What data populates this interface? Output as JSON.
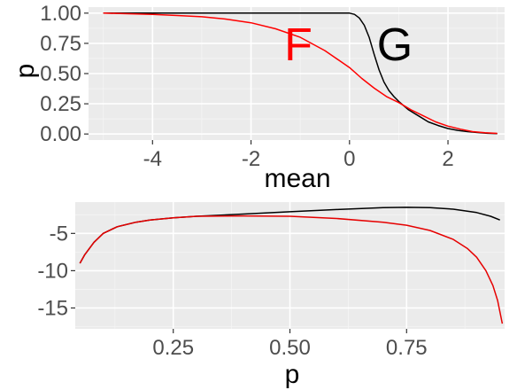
{
  "chart_data": [
    {
      "type": "line",
      "xlabel": "mean",
      "ylabel": "p",
      "xlim": [
        -5.3,
        3.15
      ],
      "ylim": [
        -0.05,
        1.05
      ],
      "x_ticks": [
        -4,
        -2,
        0,
        2
      ],
      "y_ticks": [
        0.0,
        0.25,
        0.5,
        0.75,
        1.0
      ],
      "x_tick_labels": [
        "-4",
        "-2",
        "0",
        "2"
      ],
      "y_tick_labels": [
        "0.00",
        "0.25",
        "0.50",
        "0.75",
        "1.00"
      ],
      "grid": true,
      "annotations": [
        {
          "text": "F",
          "x": -1.2,
          "y": 0.72,
          "color": "#ff0000"
        },
        {
          "text": "G",
          "x": 1.0,
          "y": 0.72,
          "color": "#000000"
        }
      ],
      "series": [
        {
          "color": "#000000",
          "x": [
            -5,
            -4,
            -3,
            -2,
            -1,
            0,
            0.1,
            0.2,
            0.3,
            0.4,
            0.5,
            0.6,
            0.7,
            0.8,
            0.9,
            1.0,
            1.2,
            1.4,
            1.6,
            1.8,
            2.0,
            2.2,
            2.4,
            2.6,
            2.8,
            3.0
          ],
          "y": [
            1.0,
            1.0,
            1.0,
            1.0,
            1.0,
            1.0,
            0.99,
            0.96,
            0.9,
            0.8,
            0.66,
            0.53,
            0.43,
            0.36,
            0.31,
            0.27,
            0.2,
            0.15,
            0.1,
            0.07,
            0.045,
            0.03,
            0.02,
            0.012,
            0.006,
            0.003
          ]
        },
        {
          "color": "#ff0000",
          "x": [
            -5,
            -4.5,
            -4,
            -3.5,
            -3,
            -2.5,
            -2,
            -1.5,
            -1,
            -0.5,
            0,
            0.25,
            0.5,
            0.75,
            1.0,
            1.25,
            1.5,
            1.75,
            2.0,
            2.25,
            2.5,
            2.75,
            3.0
          ],
          "y": [
            1.0,
            0.995,
            0.99,
            0.98,
            0.97,
            0.95,
            0.92,
            0.87,
            0.8,
            0.69,
            0.55,
            0.46,
            0.38,
            0.31,
            0.26,
            0.2,
            0.15,
            0.1,
            0.065,
            0.04,
            0.02,
            0.01,
            0.005
          ]
        }
      ]
    },
    {
      "type": "line",
      "xlabel": "p",
      "ylabel": "",
      "xlim": [
        0.04,
        0.96
      ],
      "ylim": [
        -17.8,
        -0.8
      ],
      "x_ticks": [
        0.25,
        0.5,
        0.75
      ],
      "y_ticks": [
        -5,
        -10,
        -15
      ],
      "x_tick_labels": [
        "0.25",
        "0.50",
        "0.75"
      ],
      "y_tick_labels": [
        "-5",
        "-10",
        "-15"
      ],
      "grid": true,
      "series": [
        {
          "color": "#000000",
          "x": [
            0.05,
            0.06,
            0.08,
            0.1,
            0.13,
            0.17,
            0.2,
            0.25,
            0.3,
            0.4,
            0.5,
            0.6,
            0.7,
            0.75,
            0.8,
            0.85,
            0.9,
            0.93,
            0.95
          ],
          "y": [
            -9.0,
            -7.9,
            -6.2,
            -5.0,
            -4.1,
            -3.5,
            -3.2,
            -2.9,
            -2.7,
            -2.4,
            -2.1,
            -1.8,
            -1.55,
            -1.5,
            -1.55,
            -1.75,
            -2.2,
            -2.7,
            -3.2
          ]
        },
        {
          "color": "#e60000",
          "x": [
            0.05,
            0.06,
            0.08,
            0.1,
            0.13,
            0.17,
            0.2,
            0.25,
            0.3,
            0.4,
            0.5,
            0.6,
            0.7,
            0.75,
            0.8,
            0.85,
            0.88,
            0.9,
            0.92,
            0.935,
            0.945,
            0.955
          ],
          "y": [
            -9.0,
            -7.9,
            -6.2,
            -5.0,
            -4.1,
            -3.5,
            -3.2,
            -2.9,
            -2.7,
            -2.65,
            -2.7,
            -3.0,
            -3.5,
            -3.9,
            -4.6,
            -5.8,
            -7.0,
            -8.2,
            -10.0,
            -12.0,
            -14.0,
            -17.1
          ]
        }
      ]
    }
  ]
}
